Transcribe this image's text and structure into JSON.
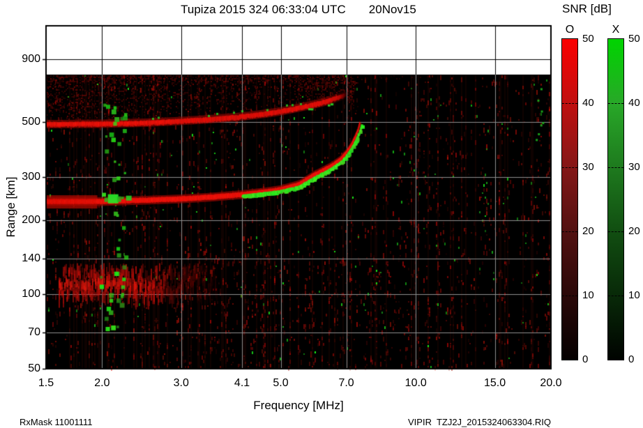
{
  "title": "Tupiza 2015 324 06:33:04 UTC       20Nov15",
  "colorbar": {
    "title": "SNR [dB]",
    "o_label": "O",
    "x_label": "X",
    "ticks": [
      "50",
      "40",
      "30",
      "20",
      "10",
      "0"
    ],
    "o_top_color": "#fb0000",
    "x_top_color": "#00d400",
    "min": 0,
    "max": 50
  },
  "axes": {
    "x_label": "Frequency [MHz]",
    "y_label": "Range [km]",
    "x_tick_labels": [
      "1.5",
      "2.0",
      "3.0",
      "4.1",
      "5.0",
      "7.0",
      "10.0",
      "15.0",
      "20.0"
    ],
    "y_tick_labels": [
      "900",
      "500",
      "300",
      "200",
      "140",
      "100",
      "70",
      "50"
    ]
  },
  "footer": {
    "left": "RxMask 11001111",
    "right": "VIPIR  TZJ2J_2015324063304.RIQ"
  },
  "chart_data": {
    "type": "heatmap",
    "title": "Tupiza 2015 324 06:33:04 UTC 20Nov15",
    "xlabel": "Frequency [MHz]",
    "ylabel": "Range [km]",
    "x_scale": "log",
    "y_scale": "log",
    "x_range": [
      1.5,
      20.0
    ],
    "y_range_km": [
      50,
      1240
    ],
    "data_region_top_km": 780,
    "x_ticks": [
      1.5,
      2.0,
      3.0,
      4.1,
      5.0,
      7.0,
      10.0,
      15.0,
      20.0
    ],
    "y_ticks": [
      900,
      500,
      300,
      200,
      140,
      100,
      70,
      50
    ],
    "grid": true,
    "snr_scale": {
      "min": 0,
      "max": 50,
      "ticks": [
        50,
        40,
        30,
        20,
        10,
        0
      ],
      "o_polarization_color": "red",
      "x_polarization_color": "green"
    },
    "o_trace_f_km": [
      [
        1.5,
        238
      ],
      [
        2.0,
        238
      ],
      [
        2.5,
        241
      ],
      [
        3.0,
        244
      ],
      [
        3.5,
        248
      ],
      [
        4.1,
        254
      ],
      [
        4.6,
        260
      ],
      [
        5.0,
        266
      ],
      [
        5.5,
        279
      ],
      [
        6.0,
        308
      ],
      [
        6.5,
        332
      ],
      [
        6.8,
        352
      ],
      [
        7.0,
        374
      ],
      [
        7.2,
        405
      ],
      [
        7.35,
        438
      ],
      [
        7.45,
        468
      ],
      [
        7.5,
        492
      ]
    ],
    "x_trace_f_km": [
      [
        4.1,
        250
      ],
      [
        4.6,
        256
      ],
      [
        5.0,
        261
      ],
      [
        5.5,
        272
      ],
      [
        6.0,
        298
      ],
      [
        6.5,
        322
      ],
      [
        6.8,
        341
      ],
      [
        7.0,
        360
      ],
      [
        7.2,
        388
      ],
      [
        7.35,
        415
      ],
      [
        7.5,
        452
      ],
      [
        7.58,
        482
      ]
    ],
    "foF2_mhz": 7.5,
    "fxF2_mhz": 7.6,
    "second_hop_f_km": [
      [
        1.5,
        490
      ],
      [
        2.0,
        492
      ],
      [
        2.5,
        497
      ],
      [
        3.0,
        505
      ],
      [
        3.5,
        514
      ],
      [
        4.0,
        524
      ],
      [
        4.5,
        537
      ],
      [
        5.0,
        552
      ],
      [
        5.5,
        572
      ],
      [
        6.0,
        592
      ],
      [
        6.3,
        605
      ],
      [
        6.6,
        622
      ],
      [
        6.8,
        634
      ],
      [
        7.0,
        648
      ]
    ],
    "e_region_band": {
      "f_range": [
        1.6,
        3.6
      ],
      "strong_until_mhz": 2.75,
      "km_range": [
        95,
        135
      ]
    },
    "spread_cloud": {
      "f_range": [
        1.5,
        7.4
      ],
      "km_range": [
        500,
        770
      ]
    },
    "green_scatter_column": {
      "f_range": [
        1.97,
        2.25
      ],
      "km_range": [
        73,
        620
      ]
    },
    "green_blob": {
      "f": 2.12,
      "km": 245
    }
  }
}
